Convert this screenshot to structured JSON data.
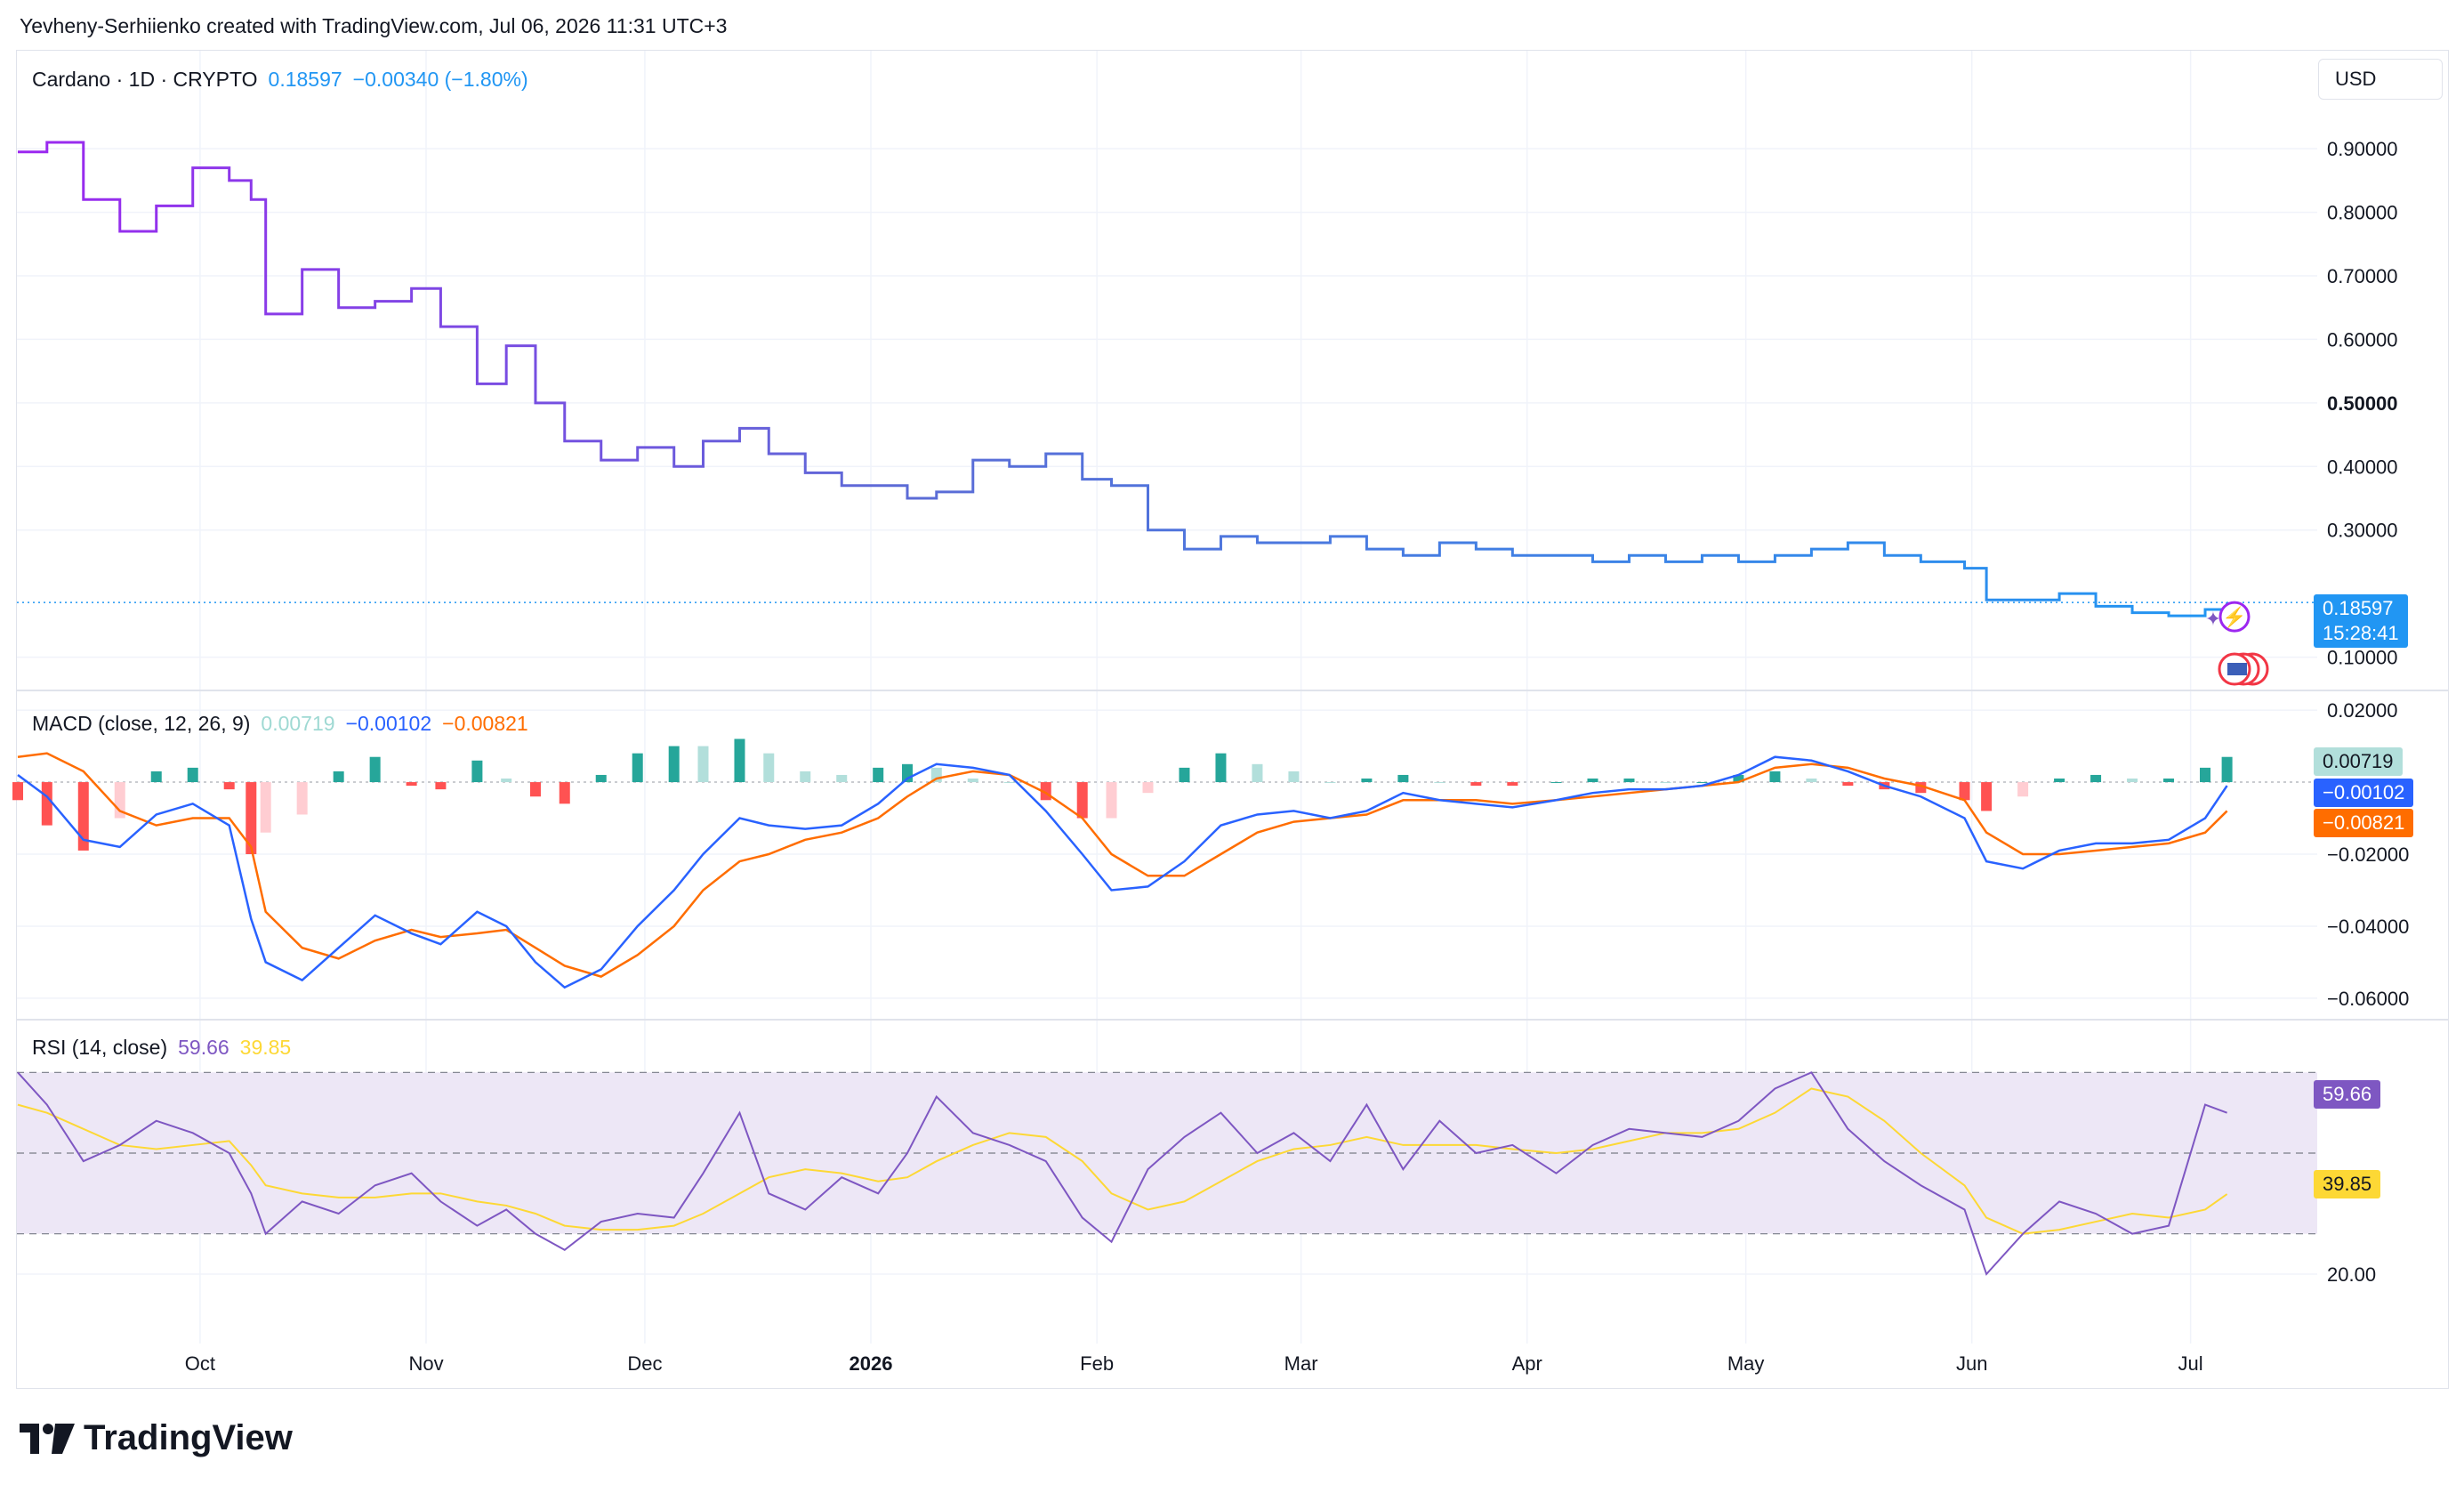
{
  "credit": "Yevheny-Serhiienko created with TradingView.com, Jul 06, 2026 11:31 UTC+3",
  "brand": "TradingView",
  "currency_button": "USD",
  "colors": {
    "price_purple": "#9c27f0",
    "price_blue": "#2196f3",
    "macd_line": "#2962ff",
    "signal_line": "#ff6d00",
    "hist_pos_strong": "#26a69a",
    "hist_pos_weak": "#b2dfdb",
    "hist_neg_strong": "#ff5252",
    "hist_neg_weak": "#ffcdd2",
    "rsi_line": "#7e57c2",
    "rsi_ma": "#fdd835",
    "rsi_band": "#ede7f6"
  },
  "icons": [
    "lightning-icon",
    "us-flag-icon",
    "sparkle-icon"
  ],
  "main_pane": {
    "symbol": "Cardano · 1D · CRYPTO",
    "last": "0.18597",
    "change": "−0.00340 (−1.80%)",
    "price_badge": "0.18597",
    "countdown": "15:28:41",
    "y_ticks": [
      "0.90000",
      "0.80000",
      "0.70000",
      "0.60000",
      "0.50000",
      "0.40000",
      "0.30000",
      "0.10000"
    ]
  },
  "macd_pane": {
    "title": "MACD (close, 12, 26, 9)",
    "hist_value": "0.00719",
    "macd_value": "−0.00102",
    "signal_value": "−0.00821",
    "y_ticks": [
      "0.02000",
      "−0.02000",
      "−0.04000",
      "−0.06000"
    ]
  },
  "rsi_pane": {
    "title": "RSI (14, close)",
    "rsi_value": "59.66",
    "ma_value": "39.85",
    "y_ticks": [
      "20.00"
    ]
  },
  "x_labels": [
    "Oct",
    "Nov",
    "Dec",
    "2026",
    "Feb",
    "Mar",
    "Apr",
    "May",
    "Jun",
    "Jul"
  ],
  "chart_data": [
    {
      "type": "line",
      "title": "Cardano · 1D · CRYPTO",
      "x": [
        "2025-09-06",
        "2025-09-10",
        "2025-09-15",
        "2025-09-20",
        "2025-09-25",
        "2025-09-30",
        "2025-10-05",
        "2025-10-08",
        "2025-10-10",
        "2025-10-15",
        "2025-10-20",
        "2025-10-25",
        "2025-10-30",
        "2025-11-03",
        "2025-11-08",
        "2025-11-12",
        "2025-11-16",
        "2025-11-20",
        "2025-11-25",
        "2025-11-30",
        "2025-12-05",
        "2025-12-09",
        "2025-12-14",
        "2025-12-18",
        "2025-12-23",
        "2025-12-28",
        "2026-01-02",
        "2026-01-06",
        "2026-01-10",
        "2026-01-15",
        "2026-01-20",
        "2026-01-25",
        "2026-01-30",
        "2026-02-03",
        "2026-02-08",
        "2026-02-13",
        "2026-02-18",
        "2026-02-23",
        "2026-02-28",
        "2026-03-05",
        "2026-03-10",
        "2026-03-15",
        "2026-03-20",
        "2026-03-25",
        "2026-03-30",
        "2026-04-05",
        "2026-04-10",
        "2026-04-15",
        "2026-04-20",
        "2026-04-25",
        "2026-04-30",
        "2026-05-05",
        "2026-05-10",
        "2026-05-15",
        "2026-05-20",
        "2026-05-25",
        "2026-05-31",
        "2026-06-03",
        "2026-06-08",
        "2026-06-13",
        "2026-06-18",
        "2026-06-23",
        "2026-06-28",
        "2026-07-03",
        "2026-07-06"
      ],
      "series": [
        {
          "values": [
            0.895,
            0.91,
            0.82,
            0.77,
            0.81,
            0.87,
            0.85,
            0.82,
            0.64,
            0.71,
            0.65,
            0.66,
            0.68,
            0.62,
            0.53,
            0.59,
            0.5,
            0.44,
            0.41,
            0.43,
            0.4,
            0.44,
            0.46,
            0.42,
            0.39,
            0.37,
            0.37,
            0.35,
            0.36,
            0.41,
            0.4,
            0.42,
            0.38,
            0.37,
            0.3,
            0.27,
            0.29,
            0.28,
            0.28,
            0.29,
            0.27,
            0.26,
            0.28,
            0.27,
            0.26,
            0.26,
            0.25,
            0.26,
            0.25,
            0.26,
            0.25,
            0.26,
            0.27,
            0.28,
            0.26,
            0.25,
            0.24,
            0.19,
            0.19,
            0.2,
            0.18,
            0.17,
            0.165,
            0.175,
            0.186
          ]
        }
      ],
      "ylim": [
        0.07,
        0.98
      ]
    },
    {
      "type": "line",
      "title": "MACD (close, 12, 26, 9)",
      "x_ref": "same dates as price",
      "series": [
        {
          "name": "MACD",
          "values": [
            0.002,
            -0.004,
            -0.016,
            -0.018,
            -0.009,
            -0.006,
            -0.012,
            -0.038,
            -0.05,
            -0.055,
            -0.046,
            -0.037,
            -0.042,
            -0.045,
            -0.036,
            -0.04,
            -0.05,
            -0.057,
            -0.052,
            -0.04,
            -0.03,
            -0.02,
            -0.01,
            -0.012,
            -0.013,
            -0.012,
            -0.006,
            0.001,
            0.005,
            0.004,
            0.002,
            -0.008,
            -0.02,
            -0.03,
            -0.029,
            -0.022,
            -0.012,
            -0.009,
            -0.008,
            -0.01,
            -0.008,
            -0.003,
            -0.005,
            -0.006,
            -0.007,
            -0.005,
            -0.003,
            -0.002,
            -0.002,
            -0.001,
            0.002,
            0.007,
            0.006,
            0.003,
            -0.001,
            -0.004,
            -0.01,
            -0.022,
            -0.024,
            -0.019,
            -0.017,
            -0.017,
            -0.016,
            -0.01,
            -0.001
          ]
        },
        {
          "name": "Signal",
          "values": [
            0.007,
            0.008,
            0.003,
            -0.008,
            -0.012,
            -0.01,
            -0.01,
            -0.018,
            -0.036,
            -0.046,
            -0.049,
            -0.044,
            -0.041,
            -0.043,
            -0.042,
            -0.041,
            -0.046,
            -0.051,
            -0.054,
            -0.048,
            -0.04,
            -0.03,
            -0.022,
            -0.02,
            -0.016,
            -0.014,
            -0.01,
            -0.004,
            0.001,
            0.003,
            0.002,
            -0.003,
            -0.01,
            -0.02,
            -0.026,
            -0.026,
            -0.02,
            -0.014,
            -0.011,
            -0.01,
            -0.009,
            -0.005,
            -0.005,
            -0.005,
            -0.006,
            -0.005,
            -0.004,
            -0.003,
            -0.002,
            -0.001,
            0.0,
            0.004,
            0.005,
            0.004,
            0.001,
            -0.001,
            -0.005,
            -0.014,
            -0.02,
            -0.02,
            -0.019,
            -0.018,
            -0.017,
            -0.014,
            -0.008
          ]
        }
      ],
      "ylim": [
        -0.062,
        0.022
      ]
    },
    {
      "type": "line",
      "title": "RSI (14, close)",
      "x_ref": "same dates as price",
      "series": [
        {
          "name": "RSI",
          "values": [
            70,
            62,
            48,
            52,
            58,
            55,
            50,
            40,
            30,
            38,
            35,
            42,
            45,
            38,
            32,
            36,
            30,
            26,
            33,
            35,
            34,
            45,
            60,
            40,
            36,
            44,
            40,
            50,
            64,
            55,
            52,
            48,
            34,
            28,
            46,
            54,
            60,
            50,
            55,
            48,
            62,
            46,
            58,
            50,
            52,
            45,
            52,
            56,
            55,
            54,
            58,
            66,
            70,
            56,
            48,
            42,
            36,
            20,
            30,
            38,
            35,
            30,
            32,
            62,
            60
          ]
        },
        {
          "name": "RSI-based MA",
          "values": [
            62,
            60,
            56,
            52,
            51,
            52,
            53,
            47,
            42,
            40,
            39,
            39,
            40,
            40,
            38,
            37,
            35,
            32,
            31,
            31,
            32,
            35,
            40,
            44,
            46,
            45,
            43,
            44,
            48,
            52,
            55,
            54,
            48,
            40,
            36,
            38,
            43,
            48,
            51,
            52,
            54,
            52,
            52,
            52,
            51,
            50,
            51,
            53,
            55,
            55,
            56,
            60,
            66,
            64,
            58,
            50,
            42,
            34,
            30,
            31,
            33,
            35,
            34,
            36,
            39.85
          ]
        }
      ],
      "ylim": [
        5,
        80
      ],
      "bands": [
        30,
        70
      ]
    }
  ]
}
